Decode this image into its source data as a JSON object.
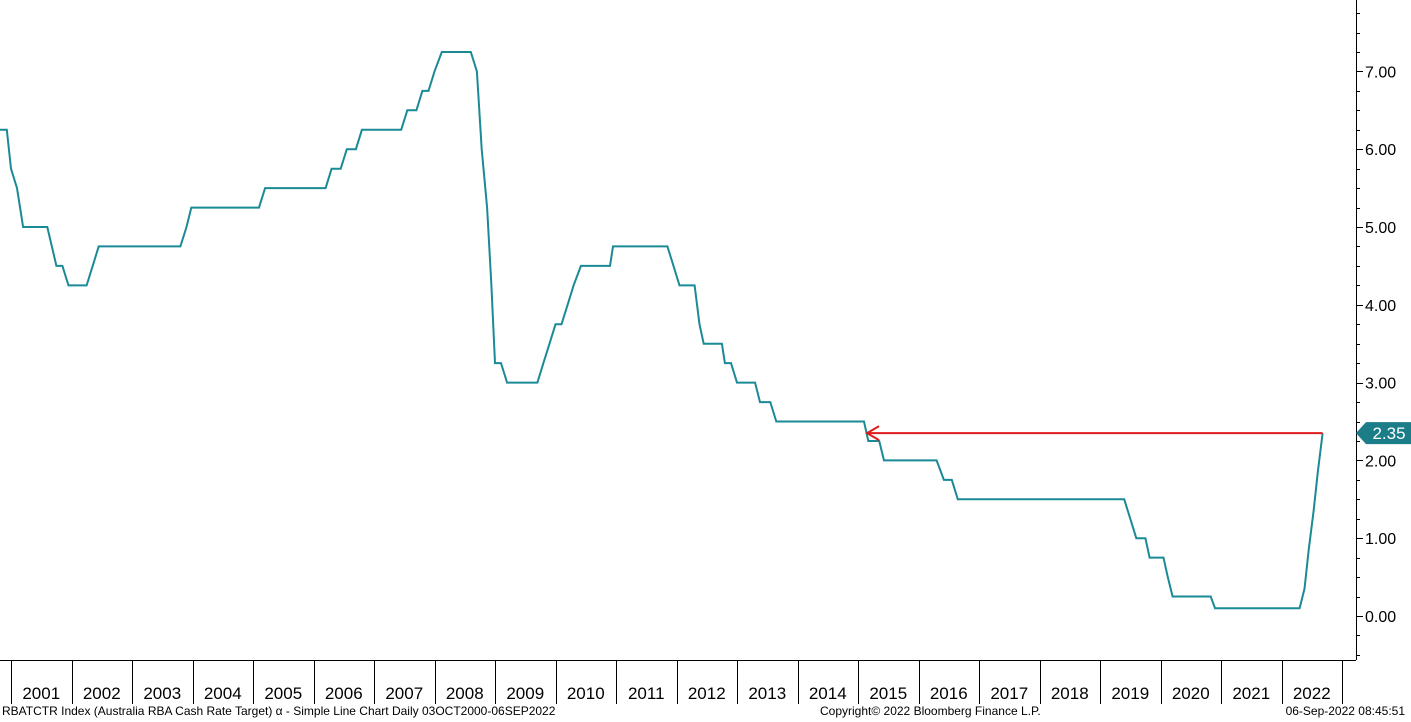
{
  "footer": {
    "ticker": "RBATCTR Index (Australia RBA Cash Rate Target) α - Simple Line Chart  Daily 03OCT2000-06SEP2022",
    "copyright": "Copyright© 2022 Bloomberg Finance L.P.",
    "timestamp": "06-Sep-2022 08:45:51"
  },
  "colors": {
    "series": "#1a8a96",
    "arrow": "#e01b1b",
    "last_label_bg": "#1a7d88"
  },
  "chart_data": {
    "type": "line",
    "title": "",
    "xlabel": "",
    "ylabel": "",
    "x_range": [
      2000.75,
      2022.75
    ],
    "ylim": [
      -0.55,
      7.8
    ],
    "yticks": [
      0,
      1,
      2,
      3,
      4,
      5,
      6,
      7
    ],
    "ytick_labels": [
      "0.00",
      "1.00",
      "2.00",
      "3.00",
      "4.00",
      "5.00",
      "6.00",
      "7.00"
    ],
    "xtick_labels": [
      "2001",
      "2002",
      "2003",
      "2004",
      "2005",
      "2006",
      "2007",
      "2008",
      "2009",
      "2010",
      "2011",
      "2012",
      "2013",
      "2014",
      "2015",
      "2016",
      "2017",
      "2018",
      "2019",
      "2020",
      "2021",
      "2022"
    ],
    "series": [
      {
        "values": [
          [
            2000.75,
            6.25
          ],
          [
            2000.93,
            6.25
          ],
          [
            2001.0,
            5.75
          ],
          [
            2001.1,
            5.5
          ],
          [
            2001.2,
            5.0
          ],
          [
            2001.6,
            5.0
          ],
          [
            2001.75,
            4.5
          ],
          [
            2001.85,
            4.5
          ],
          [
            2001.95,
            4.25
          ],
          [
            2002.25,
            4.25
          ],
          [
            2002.35,
            4.5
          ],
          [
            2002.45,
            4.75
          ],
          [
            2003.8,
            4.75
          ],
          [
            2003.9,
            5.0
          ],
          [
            2003.98,
            5.25
          ],
          [
            2005.1,
            5.25
          ],
          [
            2005.2,
            5.5
          ],
          [
            2006.2,
            5.5
          ],
          [
            2006.3,
            5.75
          ],
          [
            2006.45,
            5.75
          ],
          [
            2006.55,
            6.0
          ],
          [
            2006.7,
            6.0
          ],
          [
            2006.8,
            6.25
          ],
          [
            2007.45,
            6.25
          ],
          [
            2007.55,
            6.5
          ],
          [
            2007.7,
            6.5
          ],
          [
            2007.8,
            6.75
          ],
          [
            2007.9,
            6.75
          ],
          [
            2008.0,
            7.0
          ],
          [
            2008.12,
            7.25
          ],
          [
            2008.6,
            7.25
          ],
          [
            2008.7,
            7.0
          ],
          [
            2008.78,
            6.0
          ],
          [
            2008.87,
            5.25
          ],
          [
            2008.94,
            4.25
          ],
          [
            2009.0,
            3.25
          ],
          [
            2009.1,
            3.25
          ],
          [
            2009.2,
            3.0
          ],
          [
            2009.7,
            3.0
          ],
          [
            2009.8,
            3.25
          ],
          [
            2009.9,
            3.5
          ],
          [
            2010.0,
            3.75
          ],
          [
            2010.1,
            3.75
          ],
          [
            2010.2,
            4.0
          ],
          [
            2010.3,
            4.25
          ],
          [
            2010.42,
            4.5
          ],
          [
            2010.9,
            4.5
          ],
          [
            2010.95,
            4.75
          ],
          [
            2011.85,
            4.75
          ],
          [
            2011.95,
            4.5
          ],
          [
            2012.05,
            4.25
          ],
          [
            2012.3,
            4.25
          ],
          [
            2012.38,
            3.75
          ],
          [
            2012.45,
            3.5
          ],
          [
            2012.75,
            3.5
          ],
          [
            2012.8,
            3.25
          ],
          [
            2012.9,
            3.25
          ],
          [
            2013.0,
            3.0
          ],
          [
            2013.3,
            3.0
          ],
          [
            2013.38,
            2.75
          ],
          [
            2013.55,
            2.75
          ],
          [
            2013.65,
            2.5
          ],
          [
            2015.1,
            2.5
          ],
          [
            2015.17,
            2.25
          ],
          [
            2015.35,
            2.25
          ],
          [
            2015.43,
            2.0
          ],
          [
            2016.3,
            2.0
          ],
          [
            2016.42,
            1.75
          ],
          [
            2016.55,
            1.75
          ],
          [
            2016.65,
            1.5
          ],
          [
            2019.4,
            1.5
          ],
          [
            2019.5,
            1.25
          ],
          [
            2019.6,
            1.0
          ],
          [
            2019.75,
            1.0
          ],
          [
            2019.82,
            0.75
          ],
          [
            2020.05,
            0.75
          ],
          [
            2020.12,
            0.5
          ],
          [
            2020.2,
            0.25
          ],
          [
            2020.83,
            0.25
          ],
          [
            2020.9,
            0.1
          ],
          [
            2022.3,
            0.1
          ],
          [
            2022.38,
            0.35
          ],
          [
            2022.45,
            0.85
          ],
          [
            2022.53,
            1.35
          ],
          [
            2022.6,
            1.85
          ],
          [
            2022.68,
            2.35
          ]
        ]
      }
    ],
    "last_value_label": "2.35",
    "annotation_arrow": {
      "from": [
        2022.68,
        2.35
      ],
      "to": [
        2015.1,
        2.35
      ]
    },
    "grid": false
  }
}
